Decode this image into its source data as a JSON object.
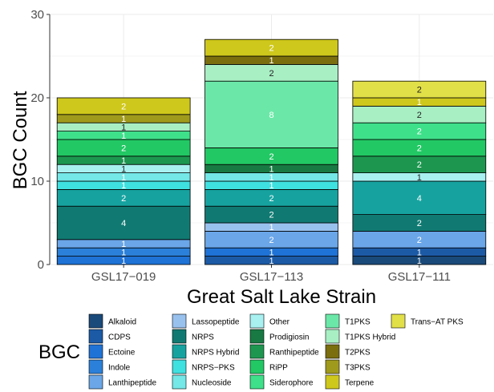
{
  "chart_data": {
    "type": "bar",
    "stacked": true,
    "xlabel": "Great Salt Lake Strain",
    "ylabel": "BGC Count",
    "ylim": [
      0,
      30
    ],
    "yticks": [
      0,
      10,
      20,
      30
    ],
    "grid": true,
    "legend": {
      "title": "BGC",
      "placement": "bottom",
      "columns": 6
    },
    "categories": [
      "GSL17−019",
      "GSL17−113",
      "GSL17−111"
    ],
    "series": [
      {
        "name": "Alkaloid",
        "color": "#1a4a7a",
        "values": [
          0,
          0,
          1
        ]
      },
      {
        "name": "CDPS",
        "color": "#1c5aa6",
        "values": [
          0,
          1,
          1
        ]
      },
      {
        "name": "Ectoine",
        "color": "#1f72d6",
        "values": [
          1,
          1,
          0
        ]
      },
      {
        "name": "Indole",
        "color": "#2b80d9",
        "values": [
          1,
          0,
          0
        ]
      },
      {
        "name": "Lanthipeptide",
        "color": "#6aa6e8",
        "values": [
          1,
          2,
          2
        ]
      },
      {
        "name": "Lassopeptide",
        "color": "#98c1ee",
        "values": [
          0,
          1,
          0
        ]
      },
      {
        "name": "NRPS",
        "color": "#107a72",
        "values": [
          4,
          2,
          2
        ]
      },
      {
        "name": "NRPS Hybrid",
        "color": "#16a3a0",
        "values": [
          2,
          2,
          4
        ]
      },
      {
        "name": "NRPS−PKS",
        "color": "#3fe0e0",
        "values": [
          1,
          1,
          0
        ]
      },
      {
        "name": "Nucleoside",
        "color": "#74e7e7",
        "values": [
          1,
          1,
          0
        ]
      },
      {
        "name": "Other",
        "color": "#a9f1f1",
        "values": [
          1,
          0,
          1
        ]
      },
      {
        "name": "Prodigiosin",
        "color": "#187a42",
        "values": [
          0,
          1,
          0
        ]
      },
      {
        "name": "Ranthipeptide",
        "color": "#1d9750",
        "values": [
          1,
          0,
          2
        ]
      },
      {
        "name": "RiPP",
        "color": "#22c864",
        "values": [
          2,
          2,
          2
        ]
      },
      {
        "name": "Siderophore",
        "color": "#3ee08a",
        "values": [
          1,
          0,
          2
        ]
      },
      {
        "name": "T1PKS",
        "color": "#6be8a8",
        "values": [
          0,
          8,
          0
        ]
      },
      {
        "name": "T1PKS Hybrid",
        "color": "#a8efc4",
        "values": [
          1,
          2,
          2
        ]
      },
      {
        "name": "T2PKS",
        "color": "#7a6e0e",
        "values": [
          0,
          1,
          0
        ]
      },
      {
        "name": "T3PKS",
        "color": "#a09a1c",
        "values": [
          1,
          0,
          0
        ]
      },
      {
        "name": "Terpene",
        "color": "#cfc81c",
        "values": [
          2,
          2,
          1
        ]
      },
      {
        "name": "Trans−AT PKS",
        "color": "#e2e048",
        "values": [
          0,
          0,
          2
        ]
      }
    ]
  }
}
